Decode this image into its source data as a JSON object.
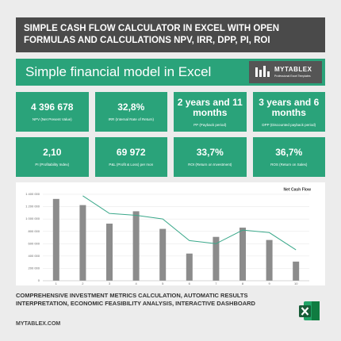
{
  "header": {
    "title": "SIMPLE CASH FLOW CALCULATOR IN EXCEL WITH OPEN FORMULAS AND CALCULATIONS NPV, IRR, DPP, PI, ROI"
  },
  "banner": {
    "title": "Simple financial model in Excel",
    "logo": "MYTABLEX",
    "logo_sub": "Professional Excel Templates"
  },
  "cards": [
    {
      "value": "4 396 678",
      "label": "NPV (Net Present Value)"
    },
    {
      "value": "32,8%",
      "label": "IRR (Internal Rate of Return)"
    },
    {
      "value": "2 years and 11 months",
      "label": "PP (Payback period)"
    },
    {
      "value": "3 years and 6 months",
      "label": "DPP (Discounted payback period)"
    },
    {
      "value": "2,10",
      "label": "PI (Profitability Index)"
    },
    {
      "value": "69 972",
      "label": "P&L (Profit & Loss) per mon"
    },
    {
      "value": "33,7%",
      "label": "ROI (Return on Investment)"
    },
    {
      "value": "36,7%",
      "label": "ROS (Return on Sales)"
    }
  ],
  "chart_data": {
    "type": "bar",
    "title": "Net Cash Flow",
    "categories": [
      "1",
      "2",
      "3",
      "4",
      "5",
      "6",
      "7",
      "8",
      "9",
      "10"
    ],
    "series": [
      {
        "type": "bar",
        "color": "#8c8c8c",
        "values": [
          1325000,
          1225000,
          925000,
          1125000,
          840000,
          440000,
          710000,
          860000,
          660000,
          310000
        ]
      },
      {
        "type": "line",
        "color": "#3aa88a",
        "values": [
          null,
          1375000,
          1090000,
          1060000,
          1000000,
          650000,
          600000,
          820000,
          780000,
          500000
        ]
      }
    ],
    "ylim": [
      0,
      1400000
    ],
    "yticks": [
      {
        "value": 0,
        "label": "0"
      },
      {
        "value": 200000,
        "label": "200 000"
      },
      {
        "value": 400000,
        "label": "400 000"
      },
      {
        "value": 600000,
        "label": "600 000"
      },
      {
        "value": 800000,
        "label": "800 000"
      },
      {
        "value": 1000000,
        "label": "1 000 000"
      },
      {
        "value": 1200000,
        "label": "1 200 000"
      },
      {
        "value": 1400000,
        "label": "1 400 000"
      }
    ],
    "grid": true
  },
  "footer": {
    "text": "COMPREHENSIVE INVESTMENT METRICS CALCULATION, AUTOMATIC RESULTS INTERPRETATION, ECONOMIC FEASIBILITY ANALYSIS, INTERACTIVE DASHBOARD",
    "site": "MYTABLEX.COM"
  }
}
